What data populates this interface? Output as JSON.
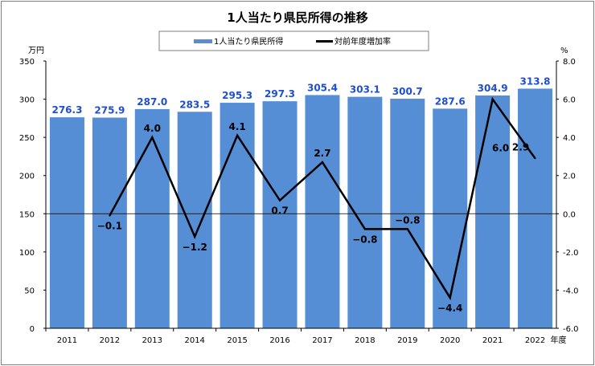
{
  "chart_data": {
    "type": "bar+line",
    "title": "1人当たり県民所得の推移",
    "categories": [
      "2011",
      "2012",
      "2013",
      "2014",
      "2015",
      "2016",
      "2017",
      "2018",
      "2019",
      "2020",
      "2021",
      "2022"
    ],
    "x_unit": "年度",
    "series": [
      {
        "name": "1人当たり県民所得",
        "type": "bar",
        "axis": "left",
        "color": "#558ed5",
        "values": [
          276.3,
          275.9,
          287.0,
          283.5,
          295.3,
          297.3,
          305.4,
          303.1,
          300.7,
          287.6,
          304.9,
          313.8
        ],
        "labels": [
          "276.3",
          "275.9",
          "287.0",
          "283.5",
          "295.3",
          "297.3",
          "305.4",
          "303.1",
          "300.7",
          "287.6",
          "304.9",
          "313.8"
        ]
      },
      {
        "name": "対前年度増加率",
        "type": "line",
        "axis": "right",
        "color": "#000000",
        "values": [
          null,
          -0.1,
          4.0,
          -1.2,
          4.1,
          0.7,
          2.7,
          -0.8,
          -0.8,
          -4.4,
          6.0,
          2.9
        ],
        "labels": [
          "",
          "−0.1",
          "4.0",
          "−1.2",
          "4.1",
          "0.7",
          "2.7",
          "−0.8",
          "−0.8",
          "−4.4",
          "6.0",
          "2.9"
        ]
      }
    ],
    "left_axis": {
      "unit": "万円",
      "ylim": [
        0,
        350
      ],
      "ticks": [
        "0",
        "50",
        "100",
        "150",
        "200",
        "250",
        "300",
        "350"
      ]
    },
    "right_axis": {
      "unit": "%",
      "ylim": [
        -6,
        8
      ],
      "ticks": [
        "-6.0",
        "-4.0",
        "-2.0",
        "0.0",
        "2.0",
        "4.0",
        "6.0",
        "8.0"
      ]
    },
    "grid": false,
    "legend": "top"
  }
}
